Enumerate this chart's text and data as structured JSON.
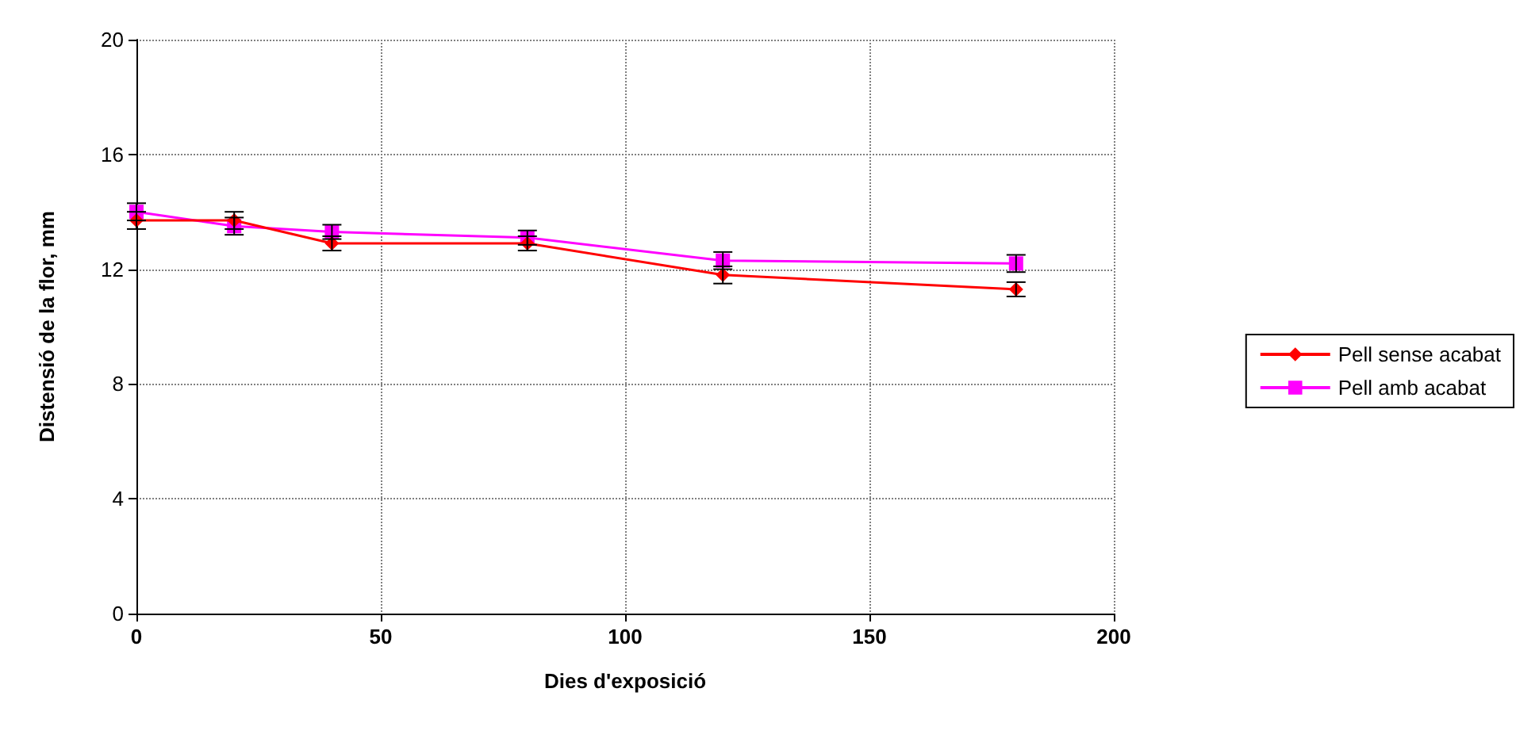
{
  "chart_data": {
    "type": "line",
    "xlabel": "Dies d'exposició",
    "ylabel": "Distensió de la flor, mm",
    "x": [
      0,
      20,
      40,
      80,
      120,
      180
    ],
    "series": [
      {
        "name": "Pell sense acabat",
        "color": "#ff0000",
        "marker": "diamond",
        "values": [
          13.7,
          13.7,
          12.9,
          12.9,
          11.8,
          11.3
        ],
        "errors": [
          0.3,
          0.3,
          0.25,
          0.25,
          0.3,
          0.25
        ]
      },
      {
        "name": "Pell amb acabat",
        "color": "#ff00ff",
        "marker": "square",
        "values": [
          14.0,
          13.5,
          13.3,
          13.1,
          12.3,
          12.2
        ],
        "errors": [
          0.3,
          0.3,
          0.25,
          0.25,
          0.3,
          0.3
        ]
      }
    ],
    "xlim": [
      0,
      200
    ],
    "xticks": [
      0,
      50,
      100,
      150,
      200
    ],
    "ylim": [
      0,
      20
    ],
    "yticks": [
      0,
      4,
      8,
      12,
      16,
      20
    ],
    "grid": true,
    "legend": "right",
    "line_style": "solid"
  }
}
